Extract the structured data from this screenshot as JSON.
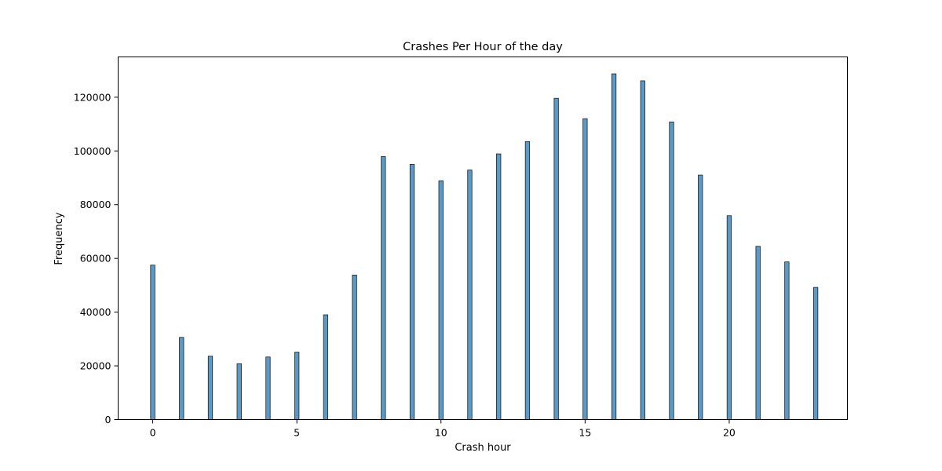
{
  "chart_data": {
    "type": "bar",
    "title": "Crashes Per Hour of the day",
    "xlabel": "Crash hour",
    "ylabel": "Frequency",
    "xlim": [
      -1.2,
      24.1
    ],
    "ylim": [
      0,
      135000
    ],
    "x_ticks": [
      0,
      5,
      10,
      15,
      20
    ],
    "x_tick_labels": [
      "0",
      "5",
      "10",
      "15",
      "20"
    ],
    "y_ticks": [
      0,
      20000,
      40000,
      60000,
      80000,
      100000,
      120000
    ],
    "y_tick_labels": [
      "0",
      "20000",
      "40000",
      "60000",
      "80000",
      "100000",
      "120000"
    ],
    "grid": false,
    "color": "#5a9ac6",
    "edge_color": "#1f1f1f",
    "x": [
      0,
      1,
      2,
      3,
      4,
      5,
      6,
      7,
      8,
      9,
      10,
      11,
      12,
      13,
      14,
      15,
      16,
      17,
      18,
      19,
      20,
      21,
      22,
      23
    ],
    "values": [
      57500,
      30600,
      23600,
      20800,
      23300,
      25100,
      39000,
      53800,
      97900,
      95000,
      88900,
      92900,
      98900,
      103500,
      119600,
      112000,
      128700,
      126100,
      110800,
      91000,
      75900,
      64500,
      58700,
      49200
    ]
  }
}
